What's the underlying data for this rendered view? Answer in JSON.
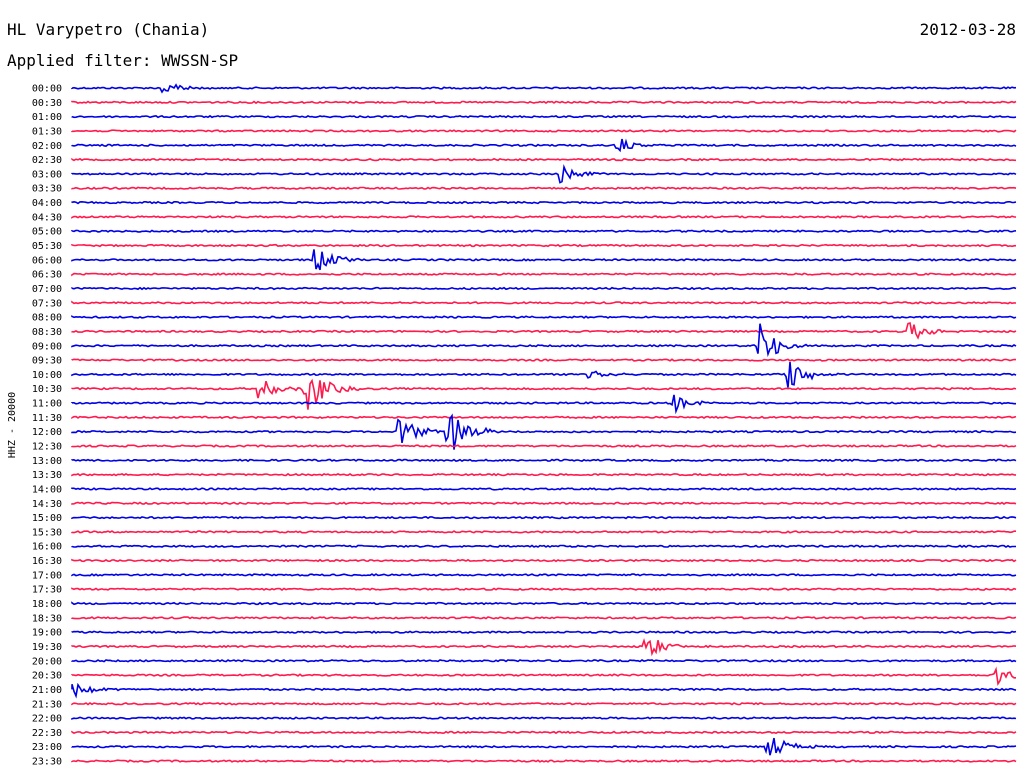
{
  "header": {
    "station": "HL Varypetro (Chania)",
    "date": "2012-03-28",
    "filter": "Applied filter: WWSSN-SP"
  },
  "chart_data": {
    "type": "line",
    "title": "HL Varypetro (Chania)",
    "ylabel": "HHZ - 20000",
    "colors": [
      "#0000e6",
      "#ff1a4d"
    ],
    "categories": [
      "00:00",
      "00:30",
      "01:00",
      "01:30",
      "02:00",
      "02:30",
      "03:00",
      "03:30",
      "04:00",
      "04:30",
      "05:00",
      "05:30",
      "06:00",
      "06:30",
      "07:00",
      "07:30",
      "08:00",
      "08:30",
      "09:00",
      "09:30",
      "10:00",
      "10:30",
      "11:00",
      "11:30",
      "12:00",
      "12:30",
      "13:00",
      "13:30",
      "14:00",
      "14:30",
      "15:00",
      "15:30",
      "16:00",
      "16:30",
      "17:00",
      "17:30",
      "18:00",
      "18:30",
      "19:00",
      "19:30",
      "20:00",
      "20:30",
      "21:00",
      "21:30",
      "22:00",
      "22:30",
      "23:00",
      "23:30"
    ],
    "events": [
      {
        "line": "00:00",
        "at": 0.1,
        "amp": 0.6
      },
      {
        "line": "02:00",
        "at": 0.58,
        "amp": 0.5
      },
      {
        "line": "03:00",
        "at": 0.52,
        "amp": 0.7
      },
      {
        "line": "06:00",
        "at": 0.26,
        "amp": 0.8
      },
      {
        "line": "08:30",
        "at": 0.89,
        "amp": 0.6
      },
      {
        "line": "09:00",
        "at": 0.73,
        "amp": 1.6
      },
      {
        "line": "10:00",
        "at": 0.55,
        "amp": 0.6
      },
      {
        "line": "10:00",
        "at": 0.76,
        "amp": 1.2
      },
      {
        "line": "10:30",
        "at": 0.2,
        "amp": 0.7
      },
      {
        "line": "10:30",
        "at": 0.25,
        "amp": 1.8
      },
      {
        "line": "11:00",
        "at": 0.64,
        "amp": 0.6
      },
      {
        "line": "12:00",
        "at": 0.35,
        "amp": 1.0
      },
      {
        "line": "12:00",
        "at": 0.4,
        "amp": 1.9
      },
      {
        "line": "19:30",
        "at": 0.61,
        "amp": 0.8
      },
      {
        "line": "20:30",
        "at": 0.98,
        "amp": 0.8
      },
      {
        "line": "21:00",
        "at": 0.0,
        "amp": 0.7
      },
      {
        "line": "23:00",
        "at": 0.74,
        "amp": 0.8
      }
    ]
  }
}
